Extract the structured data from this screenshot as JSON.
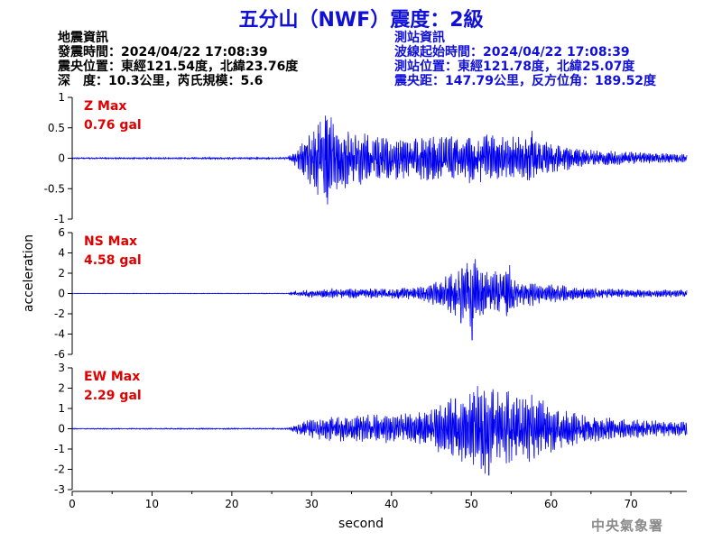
{
  "title": "五分山（NWF）震度：2級",
  "earthquake": {
    "heading": "地震資訊",
    "time": "發震時間：2024/04/22 17:08:39",
    "epicenter": "震央位置：東經121.54度，北緯23.76度",
    "depth": "深　度：10.3公里，芮氏規模：5.6"
  },
  "station": {
    "heading": "測站資訊",
    "wave_start": "波線起始時間：2024/04/22 17:08:39",
    "location": "測站位置：東經121.78度，北緯25.07度",
    "distance": "震央距：147.79公里，反方位角：189.52度"
  },
  "footer": "中央氣象署",
  "colors": {
    "trace": "#0000ee",
    "max_label": "#e00000",
    "title": "#1010d8"
  },
  "chart_data": {
    "type": "line",
    "xlabel": "second",
    "ylabel": "acceleration",
    "xlim": [
      0,
      77
    ],
    "xticks": [
      0,
      10,
      20,
      30,
      40,
      50,
      60,
      70
    ],
    "grid": false,
    "panels": [
      {
        "name": "Z",
        "max_label": "Z Max",
        "max_value": "0.76 gal",
        "ylim": [
          -1,
          1
        ],
        "yticks": [
          -1,
          -0.5,
          0,
          0.5,
          1
        ],
        "ytick_labels": [
          "-1",
          "-0.5",
          "0",
          "0.5",
          "1"
        ],
        "envelope": {
          "t": [
            0,
            27,
            28,
            29,
            30,
            31,
            32,
            33,
            35,
            38,
            42,
            46,
            50,
            54,
            57,
            58,
            60,
            63,
            68,
            72,
            77
          ],
          "amp": [
            0.01,
            0.015,
            0.12,
            0.3,
            0.45,
            0.55,
            0.65,
            0.5,
            0.38,
            0.35,
            0.3,
            0.32,
            0.36,
            0.3,
            0.35,
            0.3,
            0.22,
            0.15,
            0.1,
            0.08,
            0.06
          ]
        },
        "peaks": [
          {
            "t": 31.7,
            "v": 0.7
          },
          {
            "t": 32.0,
            "v": -0.76
          },
          {
            "t": 30.8,
            "v": 0.55
          },
          {
            "t": 57.6,
            "v": 0.45
          }
        ],
        "seed": 7
      },
      {
        "name": "NS",
        "max_label": "NS Max",
        "max_value": "4.58 gal",
        "ylim": [
          -6,
          6
        ],
        "yticks": [
          -6,
          -4,
          -2,
          0,
          2,
          4,
          6
        ],
        "ytick_labels": [
          "-6",
          "-4",
          "-2",
          "0",
          "2",
          "4",
          "6"
        ],
        "envelope": {
          "t": [
            0,
            27,
            28,
            30,
            33,
            36,
            40,
            44,
            46,
            48,
            50,
            52,
            54,
            56,
            60,
            64,
            70,
            77
          ],
          "amp": [
            0.02,
            0.03,
            0.2,
            0.35,
            0.45,
            0.4,
            0.45,
            0.6,
            1.2,
            1.9,
            2.8,
            1.8,
            2.1,
            1.2,
            0.8,
            0.5,
            0.35,
            0.3
          ]
        },
        "peaks": [
          {
            "t": 50.1,
            "v": -4.58
          },
          {
            "t": 50.5,
            "v": 3.4
          },
          {
            "t": 48.7,
            "v": -2.9
          },
          {
            "t": 54.8,
            "v": 2.8
          },
          {
            "t": 49.5,
            "v": 3.0
          }
        ],
        "seed": 19
      },
      {
        "name": "EW",
        "max_label": "EW Max",
        "max_value": "2.29 gal",
        "ylim": [
          -3,
          3
        ],
        "yticks": [
          -3,
          -2,
          -1,
          0,
          1,
          2,
          3
        ],
        "ytick_labels": [
          "-3",
          "-2",
          "-1",
          "0",
          "1",
          "2",
          "3"
        ],
        "envelope": {
          "t": [
            0,
            27,
            28,
            30,
            33,
            36,
            40,
            44,
            46,
            48,
            50,
            52,
            54,
            56,
            58,
            60,
            64,
            70,
            77
          ],
          "amp": [
            0.02,
            0.03,
            0.2,
            0.4,
            0.55,
            0.6,
            0.6,
            0.7,
            1.1,
            1.4,
            1.7,
            1.9,
            1.7,
            1.4,
            1.5,
            1.0,
            0.6,
            0.4,
            0.3
          ]
        },
        "peaks": [
          {
            "t": 52.2,
            "v": -2.29
          },
          {
            "t": 52.7,
            "v": 1.95
          },
          {
            "t": 50.3,
            "v": 1.8
          },
          {
            "t": 51.5,
            "v": -1.8
          },
          {
            "t": 55.7,
            "v": 1.5
          }
        ],
        "seed": 31
      }
    ]
  }
}
